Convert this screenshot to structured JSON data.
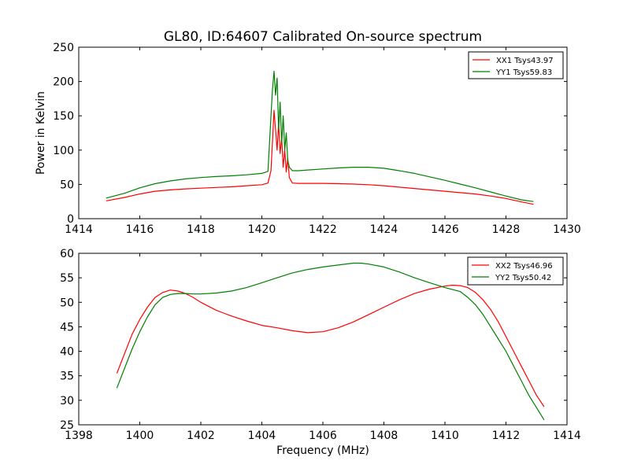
{
  "chart_data": [
    {
      "type": "line",
      "title": "GL80, ID:64607 Calibrated On-source spectrum",
      "xlabel": "",
      "ylabel": "Power in Kelvin",
      "xlim": [
        1414,
        1430
      ],
      "ylim": [
        0,
        250
      ],
      "xticks": [
        1414,
        1416,
        1418,
        1420,
        1422,
        1424,
        1426,
        1428,
        1430
      ],
      "yticks": [
        0,
        50,
        100,
        150,
        200,
        250
      ],
      "grid": false,
      "legend": "top-right",
      "series": [
        {
          "name": "XX1 Tsys43.97",
          "color": "#ff0000",
          "x": [
            1414.9,
            1415.5,
            1416.0,
            1416.5,
            1417.0,
            1417.5,
            1418.0,
            1418.5,
            1419.0,
            1419.5,
            1420.0,
            1420.2,
            1420.3,
            1420.4,
            1420.45,
            1420.5,
            1420.55,
            1420.6,
            1420.65,
            1420.7,
            1420.75,
            1420.8,
            1420.85,
            1420.9,
            1421.0,
            1421.2,
            1421.5,
            1422.0,
            1422.5,
            1423.0,
            1423.5,
            1424.0,
            1424.5,
            1425.0,
            1425.5,
            1426.0,
            1426.5,
            1427.0,
            1427.5,
            1428.0,
            1428.5,
            1428.9
          ],
          "values": [
            26,
            31,
            36,
            40,
            42,
            43.5,
            44.5,
            45.5,
            46.5,
            48,
            49.5,
            52,
            70,
            158,
            130,
            100,
            140,
            95,
            118,
            75,
            100,
            68,
            88,
            60,
            52,
            51.5,
            51.5,
            51.5,
            51,
            50.5,
            49.5,
            48,
            46,
            44,
            42,
            40,
            38,
            36,
            33,
            29.5,
            24.5,
            21
          ]
        },
        {
          "name": "YY1 Tsys59.83",
          "color": "#008000",
          "x": [
            1414.9,
            1415.5,
            1416.0,
            1416.5,
            1417.0,
            1417.5,
            1418.0,
            1418.5,
            1419.0,
            1419.5,
            1420.0,
            1420.2,
            1420.3,
            1420.35,
            1420.4,
            1420.45,
            1420.5,
            1420.55,
            1420.6,
            1420.65,
            1420.7,
            1420.75,
            1420.8,
            1420.85,
            1420.9,
            1421.0,
            1421.2,
            1421.5,
            1422.0,
            1422.5,
            1423.0,
            1423.5,
            1424.0,
            1424.5,
            1425.0,
            1425.5,
            1426.0,
            1426.5,
            1427.0,
            1427.5,
            1428.0,
            1428.5,
            1428.9
          ],
          "values": [
            30,
            37,
            45,
            51,
            55,
            58,
            60,
            61.5,
            62.5,
            64,
            66,
            69,
            150,
            190,
            215,
            180,
            205,
            130,
            170,
            110,
            150,
            100,
            125,
            85,
            75,
            70,
            70,
            71,
            72.5,
            74,
            75,
            75,
            73.5,
            70,
            66,
            61,
            56,
            50.5,
            45,
            39,
            33,
            27.5,
            25
          ]
        }
      ]
    },
    {
      "type": "line",
      "title": "",
      "xlabel": "Frequency (MHz)",
      "ylabel": "",
      "xlim": [
        1398,
        1414
      ],
      "ylim": [
        25,
        60
      ],
      "xticks": [
        1398,
        1400,
        1402,
        1404,
        1406,
        1408,
        1410,
        1412,
        1414
      ],
      "yticks": [
        25,
        30,
        35,
        40,
        45,
        50,
        55,
        60
      ],
      "grid": false,
      "legend": "top-right",
      "series": [
        {
          "name": "XX2 Tsys46.96",
          "color": "#ff0000",
          "x": [
            1399.25,
            1399.5,
            1399.75,
            1400.0,
            1400.25,
            1400.5,
            1400.75,
            1401.0,
            1401.25,
            1401.5,
            1401.75,
            1402.0,
            1402.25,
            1402.5,
            1402.75,
            1403.0,
            1403.5,
            1404.0,
            1404.5,
            1405.0,
            1405.5,
            1406.0,
            1406.5,
            1407.0,
            1407.5,
            1408.0,
            1408.5,
            1409.0,
            1409.5,
            1410.0,
            1410.25,
            1410.5,
            1410.75,
            1411.0,
            1411.25,
            1411.5,
            1411.75,
            1412.0,
            1412.25,
            1412.5,
            1412.75,
            1413.0,
            1413.25
          ],
          "values": [
            35.5,
            39.5,
            43.5,
            46.5,
            49,
            51,
            52,
            52.5,
            52.3,
            51.8,
            51,
            50,
            49.2,
            48.4,
            47.8,
            47.2,
            46.2,
            45.3,
            44.8,
            44.2,
            43.8,
            44,
            44.8,
            46,
            47.5,
            49,
            50.5,
            51.8,
            52.7,
            53.3,
            53.5,
            53.4,
            53,
            52,
            50.5,
            48.5,
            46,
            43,
            40,
            37,
            34,
            31,
            28.7
          ]
        },
        {
          "name": "YY2 Tsys50.42",
          "color": "#008000",
          "x": [
            1399.25,
            1399.5,
            1399.75,
            1400.0,
            1400.25,
            1400.5,
            1400.75,
            1401.0,
            1401.25,
            1401.5,
            1401.75,
            1402.0,
            1402.5,
            1403.0,
            1403.5,
            1404.0,
            1404.5,
            1405.0,
            1405.5,
            1406.0,
            1406.5,
            1407.0,
            1407.25,
            1407.5,
            1408.0,
            1408.5,
            1409.0,
            1409.5,
            1410.0,
            1410.5,
            1410.75,
            1411.0,
            1411.25,
            1411.5,
            1411.75,
            1412.0,
            1412.25,
            1412.5,
            1412.75,
            1413.0,
            1413.25
          ],
          "values": [
            32.5,
            36.5,
            40.5,
            44,
            47,
            49.5,
            51,
            51.6,
            51.8,
            51.8,
            51.7,
            51.7,
            51.9,
            52.3,
            53,
            54,
            55,
            56,
            56.7,
            57.2,
            57.6,
            58,
            58,
            57.8,
            57.2,
            56.2,
            55,
            54,
            53,
            52.2,
            51,
            49.5,
            47.5,
            45,
            42.5,
            40,
            37,
            34,
            31,
            28.5,
            26
          ]
        }
      ]
    }
  ]
}
